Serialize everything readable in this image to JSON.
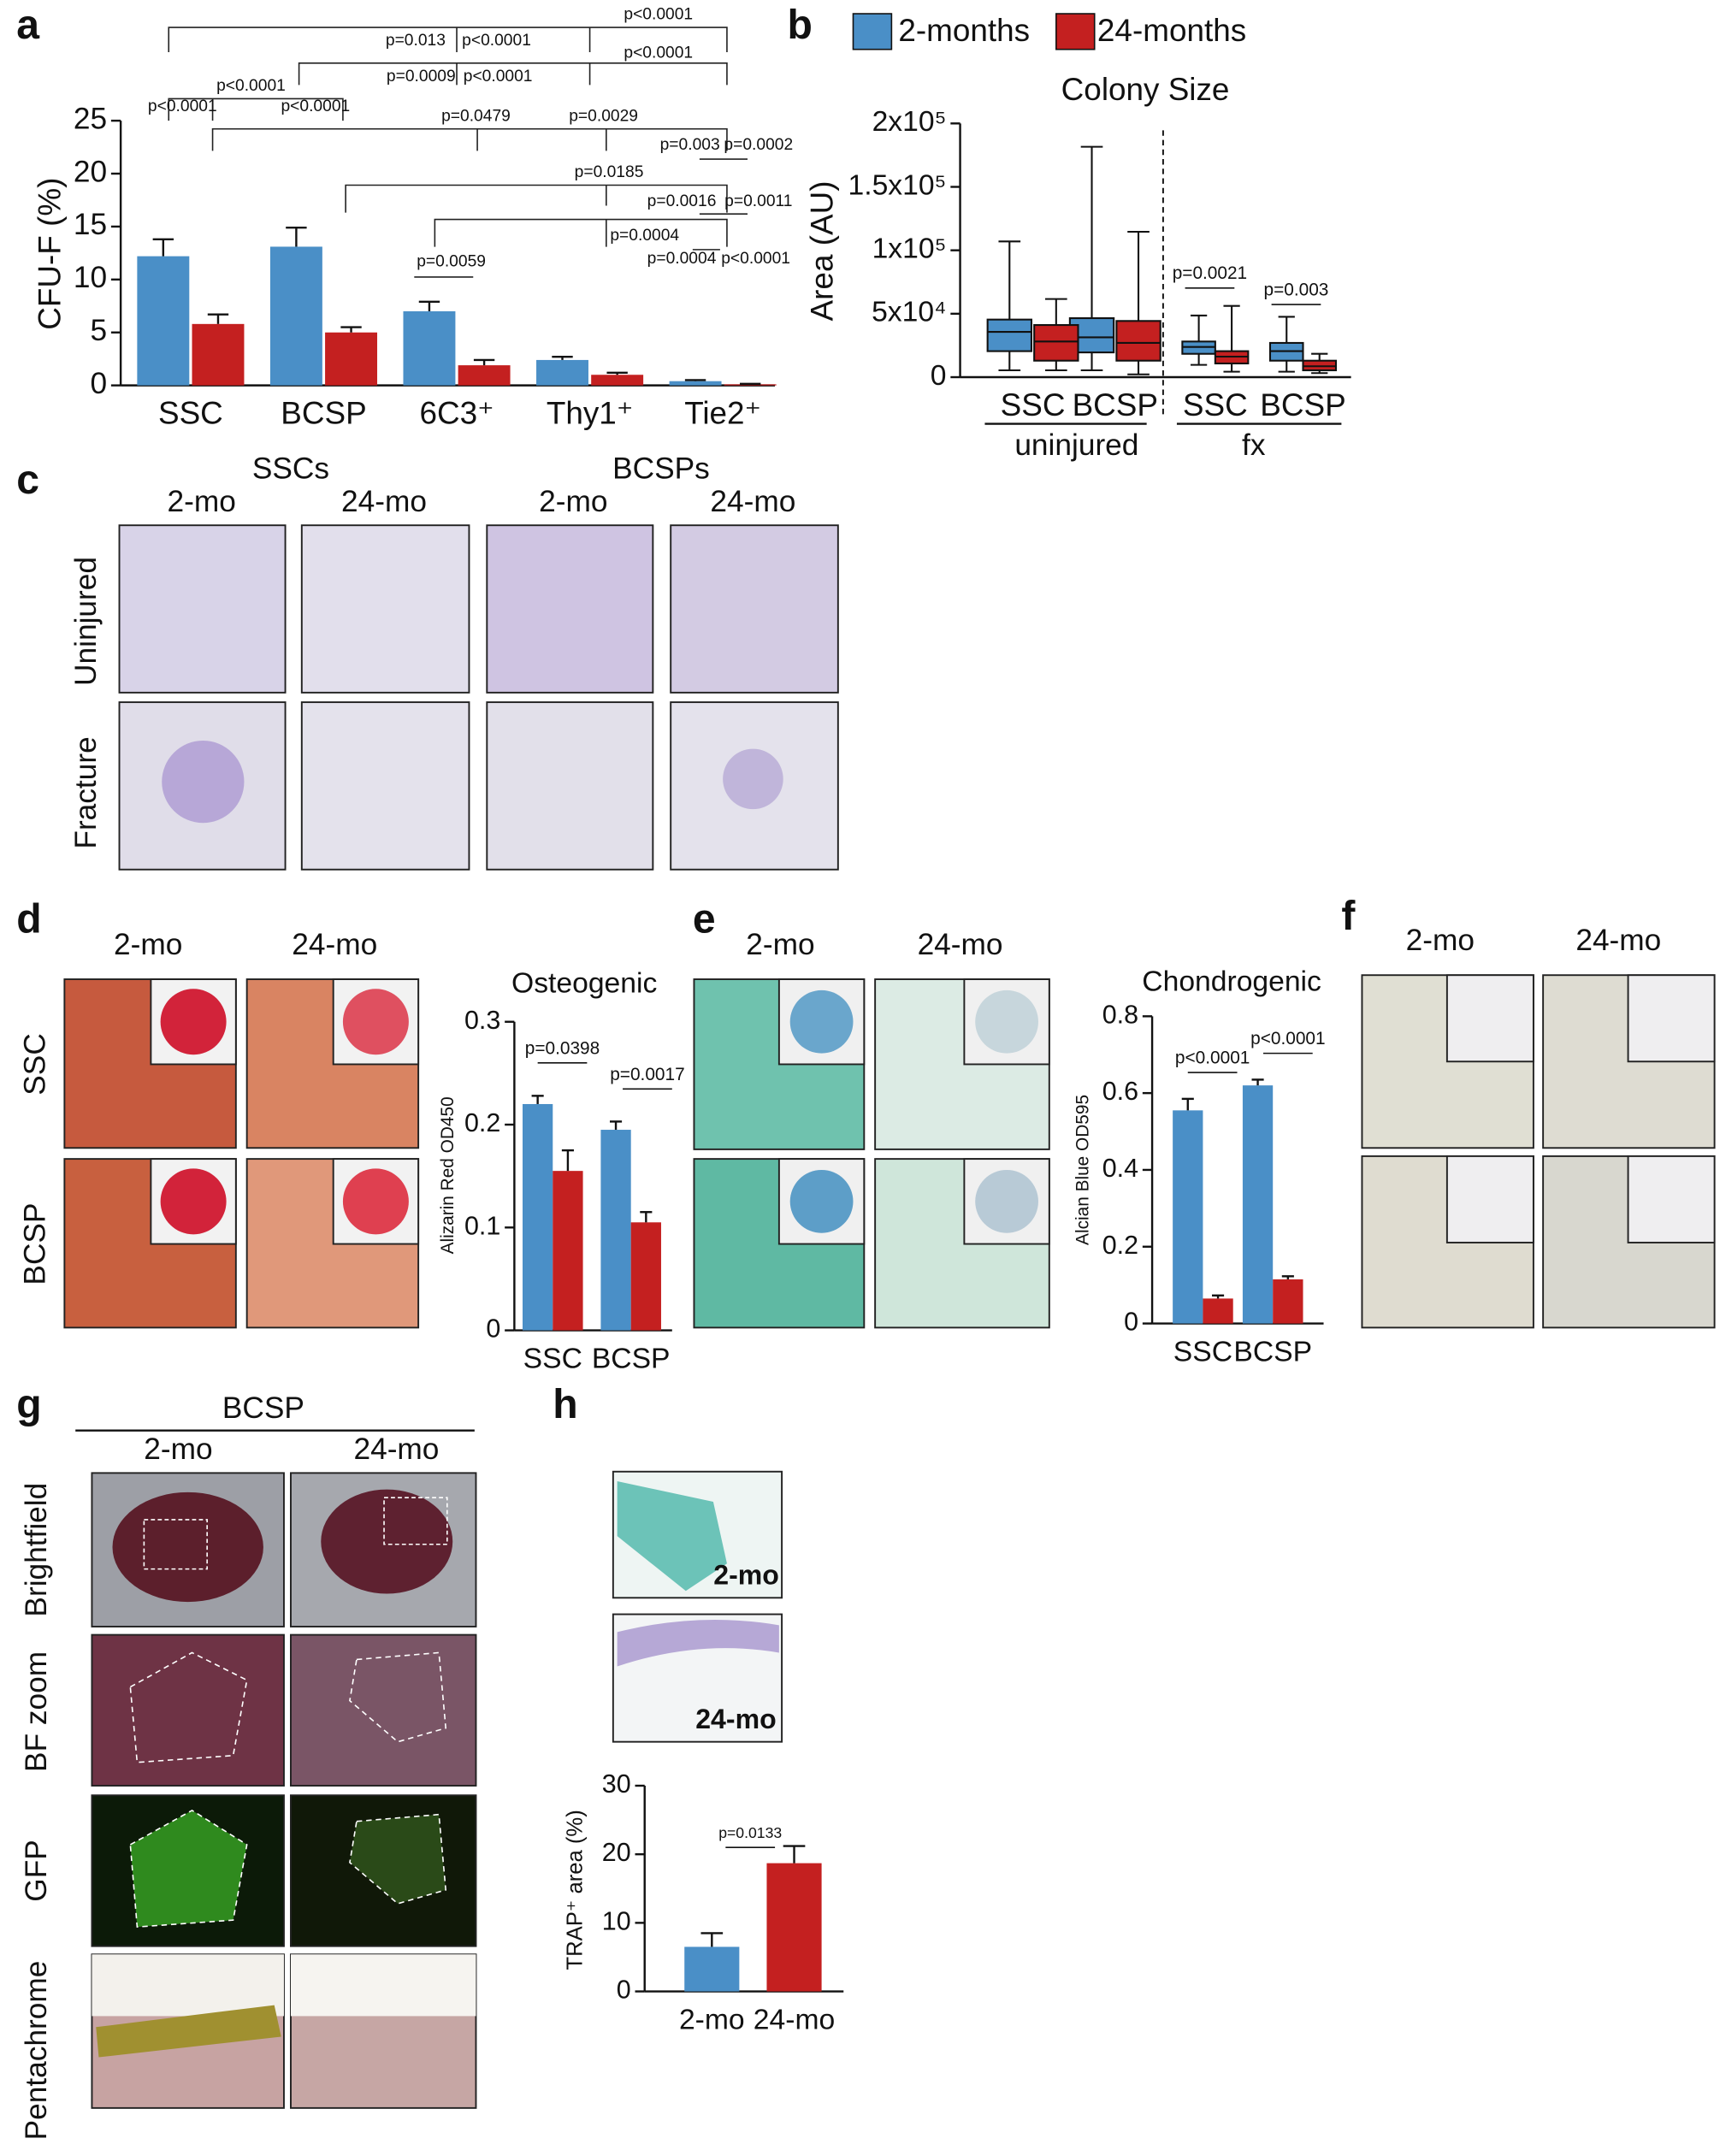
{
  "chart_data": [
    {
      "type": "bar",
      "y_label": "CFU-F (%)",
      "categories": [
        "SSC",
        "BCSP",
        "6C3⁺",
        "Thy1⁺",
        "Tie2⁺"
      ],
      "series": [
        {
          "color": "#4a8fc7",
          "values": [
            12.2,
            13.1,
            7.0,
            2.4,
            0.4
          ],
          "errors": [
            1.6,
            1.8,
            0.9,
            0.3,
            0.1
          ]
        },
        {
          "color": "#c42020",
          "values": [
            5.8,
            5.0,
            1.9,
            1.0,
            0.1
          ],
          "errors": [
            0.9,
            0.5,
            0.5,
            0.2,
            0.05
          ]
        }
      ],
      "ylim": [
        0,
        25
      ],
      "yticks": [
        0,
        5,
        10,
        15,
        20,
        25
      ],
      "annotations": [
        "p<0.0001",
        "p=0.013",
        "p<0.0001",
        "p<0.0001",
        "p=0.0009",
        "p<0.0001",
        "p<0.0001",
        "p<0.0001",
        "p<0.0001",
        "p=0.0479",
        "p=0.0029",
        "p=0.003",
        "p=0.0002",
        "p=0.0185",
        "p=0.0016",
        "p=0.0011",
        "p=0.0004",
        "p=0.0059",
        "p=0.0004",
        "p<0.0001"
      ]
    },
    {
      "type": "box",
      "title": "Colony Size",
      "y_label": "Area (AU)",
      "categories": [
        "SSC",
        "BCSP",
        "SSC",
        "BCSP"
      ],
      "groups": [
        "uninjured",
        "fx"
      ],
      "series": [
        {
          "name": "2-months",
          "color": "#4a8fc7",
          "values": [
            [
              5400,
              20500,
              35700,
              45400,
              107000
            ],
            [
              5400,
              19500,
              31400,
              46500,
              181600
            ],
            [
              9700,
              18400,
              23800,
              28100,
              48600
            ],
            [
              4300,
              13000,
              20500,
              27000,
              47600
            ]
          ]
        },
        {
          "name": "24-months",
          "color": "#c42020",
          "values": [
            [
              5400,
              13000,
              28100,
              41100,
              61600
            ],
            [
              2200,
              13000,
              27000,
              44300,
              114600
            ],
            [
              4300,
              10800,
              16200,
              20500,
              56200
            ],
            [
              3200,
              5400,
              8600,
              13000,
              18400
            ]
          ]
        }
      ],
      "ylim": [
        0,
        200000
      ],
      "yticks": [
        0,
        {
          "value": 50000,
          "label": "5x10⁴"
        },
        {
          "value": 100000,
          "label": "1x10⁵"
        },
        {
          "value": 150000,
          "label": "1.5x10⁵"
        },
        {
          "value": 200000,
          "label": "2x10⁵"
        }
      ],
      "legend": "top",
      "annotations": [
        "p=0.0021",
        "p=0.003"
      ]
    },
    {
      "type": "bar",
      "title": "Osteogenic",
      "y_label": "Alizarin Red OD450",
      "categories": [
        "SSC",
        "BCSP"
      ],
      "series": [
        {
          "color": "#4a8fc7",
          "values": [
            0.22,
            0.195
          ],
          "errors": [
            0.008,
            0.008
          ]
        },
        {
          "color": "#c42020",
          "values": [
            0.155,
            0.105
          ],
          "errors": [
            0.02,
            0.01
          ]
        }
      ],
      "ylim": [
        0,
        0.3
      ],
      "yticks": [
        0,
        0.1,
        0.2,
        0.3
      ],
      "annotations": [
        "p=0.0398",
        "p=0.0017"
      ]
    },
    {
      "type": "bar",
      "title": "Chondrogenic",
      "y_label": "Alcian Blue OD595",
      "categories": [
        "SSC",
        "BCSP"
      ],
      "series": [
        {
          "color": "#4a8fc7",
          "values": [
            0.555,
            0.62
          ],
          "errors": [
            0.03,
            0.015
          ]
        },
        {
          "color": "#c42020",
          "values": [
            0.065,
            0.115
          ],
          "errors": [
            0.008,
            0.008
          ]
        }
      ],
      "ylim": [
        0,
        0.8
      ],
      "yticks": [
        0,
        0.2,
        0.4,
        0.6,
        0.8
      ],
      "annotations": [
        "p<0.0001",
        "p<0.0001"
      ]
    },
    {
      "type": "bar",
      "y_label": "TRAP⁺ area (%)",
      "categories": [
        "2-mo",
        "24-mo"
      ],
      "series": [
        {
          "colors": [
            "#4a8fc7",
            "#c42020"
          ],
          "values": [
            6.5,
            18.7
          ],
          "errors": [
            2.0,
            2.5
          ]
        }
      ],
      "ylim": [
        0,
        30
      ],
      "yticks": [
        0,
        10,
        20,
        30
      ],
      "annotations": [
        "p=0.0133"
      ]
    }
  ],
  "panels": {
    "letters": [
      "a",
      "b",
      "c",
      "d",
      "e",
      "f",
      "g",
      "h"
    ],
    "c": {
      "groups": [
        "SSCs",
        "BCSPs"
      ],
      "columns": [
        "2-mo",
        "24-mo",
        "2-mo",
        "24-mo"
      ],
      "rows": [
        "Uninjured",
        "Fracture"
      ]
    },
    "d": {
      "columns": [
        "2-mo",
        "24-mo"
      ],
      "rows": [
        "SSC",
        "BCSP"
      ]
    },
    "e": {
      "columns": [
        "2-mo",
        "24-mo"
      ]
    },
    "f": {
      "columns": [
        "2-mo",
        "24-mo"
      ]
    },
    "g": {
      "group": "BCSP",
      "columns": [
        "2-mo",
        "24-mo"
      ],
      "rows": [
        "Brightfield",
        "BF zoom",
        "GFP",
        "Pentachrome"
      ]
    },
    "h": {
      "images": [
        "2-mo",
        "24-mo"
      ]
    }
  }
}
